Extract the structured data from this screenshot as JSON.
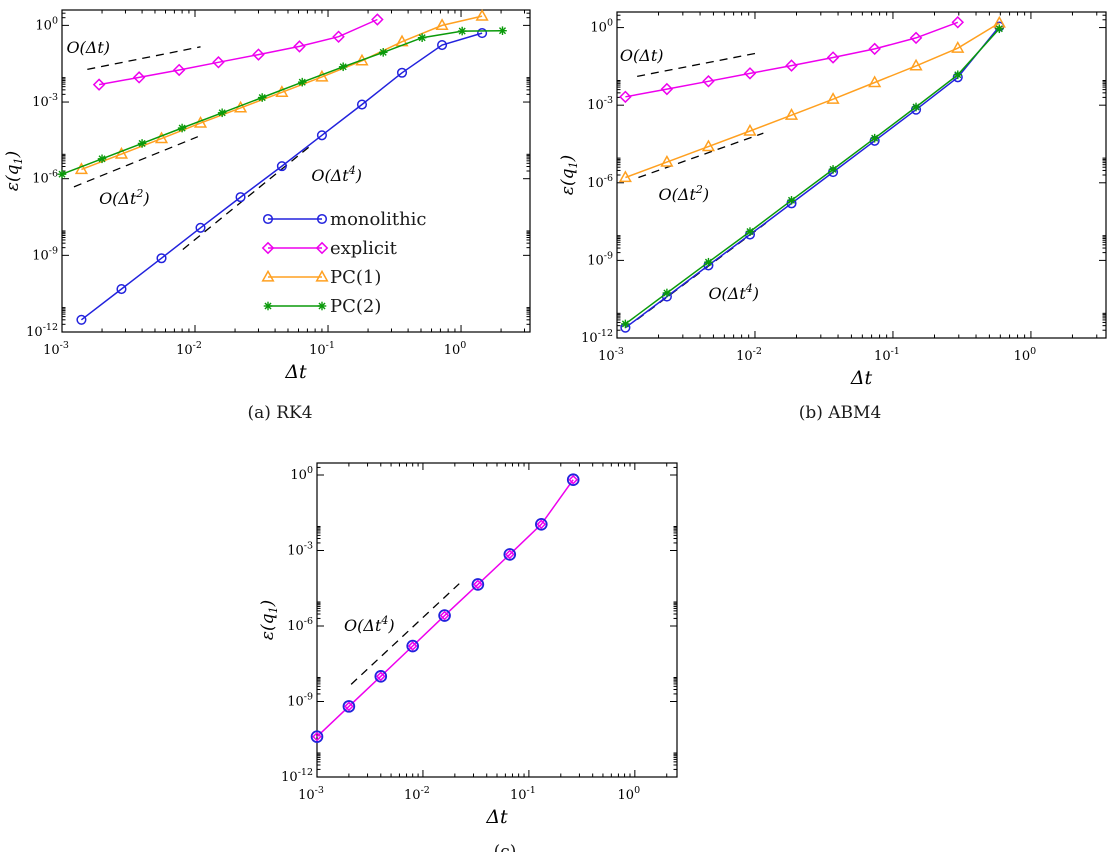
{
  "figure": {
    "captions": {
      "a": "(a) RK4",
      "b": "(b) ABM4",
      "c": "(c)"
    },
    "axis_color": "#000000",
    "background": "#ffffff"
  },
  "chart_data": [
    {
      "id": "a",
      "type": "line",
      "title": "(a) RK4",
      "xlabel": "Δt",
      "ylabel_base": "ε(q",
      "ylabel_sub": "1",
      "ylabel_close": ")",
      "xlim": [
        0.001,
        3.3
      ],
      "ylim": [
        1e-12,
        4
      ],
      "xticks": [
        0.001,
        0.01,
        0.1,
        1
      ],
      "yticks": [
        1,
        0.001,
        1e-06,
        1e-09,
        1e-12
      ],
      "grid": false,
      "legend_position": "inside-right-middle",
      "series": [
        {
          "name": "monolithic",
          "color": "#2222dd",
          "marker": "circle",
          "line": true,
          "x": [
            0.0014,
            0.0028,
            0.0056,
            0.011,
            0.022,
            0.045,
            0.09,
            0.18,
            0.36,
            0.72,
            1.44
          ],
          "y": [
            3e-12,
            4.8e-11,
            7.7e-10,
            1.2e-08,
            1.9e-07,
            3.1e-06,
            5e-05,
            0.0008,
            0.014,
            0.17,
            0.5
          ]
        },
        {
          "name": "explicit",
          "color": "#ee00ee",
          "marker": "diamond",
          "line": true,
          "x": [
            0.0019,
            0.0038,
            0.0076,
            0.015,
            0.03,
            0.061,
            0.12,
            0.235
          ],
          "y": [
            0.0048,
            0.0092,
            0.018,
            0.036,
            0.072,
            0.15,
            0.36,
            1.7
          ]
        },
        {
          "name": "PC(1)",
          "color": "#ffa020",
          "marker": "triangle",
          "line": true,
          "x": [
            0.0014,
            0.0028,
            0.0056,
            0.011,
            0.022,
            0.045,
            0.09,
            0.18,
            0.36,
            0.72,
            1.44
          ],
          "y": [
            2.3e-06,
            9.2e-06,
            3.7e-05,
            0.00015,
            0.00059,
            0.0024,
            0.0096,
            0.041,
            0.23,
            1.0,
            2.3
          ]
        },
        {
          "name": "PC(2)",
          "color": "#0a9a0a",
          "marker": "asterisk",
          "line": true,
          "x": [
            0.001,
            0.002,
            0.004,
            0.008,
            0.016,
            0.032,
            0.064,
            0.13,
            0.26,
            0.51,
            1.02,
            2.05
          ],
          "y": [
            1.5e-06,
            6e-06,
            2.4e-05,
            9.6e-05,
            0.00038,
            0.0015,
            0.006,
            0.024,
            0.088,
            0.33,
            0.6,
            0.62
          ]
        }
      ],
      "ref_lines": [
        {
          "x1": 0.00155,
          "y1": 0.019,
          "x2": 0.011,
          "y2": 0.145,
          "label_base": "O(Δt",
          "label_exp": "",
          "label_close": ")",
          "lx": 0.00108,
          "ly": 0.13
        },
        {
          "x1": 0.00123,
          "y1": 4.8e-07,
          "x2": 0.0105,
          "y2": 4.4e-05,
          "label_base": "O(Δt",
          "label_exp": "2",
          "label_close": ")",
          "lx": 0.0019,
          "ly": 1.6e-07
        },
        {
          "x1": 0.0081,
          "y1": 1.7e-09,
          "x2": 0.0735,
          "y2": 1.9e-05,
          "label_base": "O(Δt",
          "label_exp": "4",
          "label_close": ")",
          "lx": 0.075,
          "ly": 1.3e-06
        }
      ],
      "legend_items": [
        "monolithic",
        "explicit",
        "PC(1)",
        "PC(2)"
      ]
    },
    {
      "id": "b",
      "type": "line",
      "title": "(b) ABM4",
      "xlabel": "Δt",
      "ylabel_base": "ε(q",
      "ylabel_sub": "1",
      "ylabel_close": ")",
      "xlim": [
        0.001,
        3.5
      ],
      "ylim": [
        1e-12,
        4
      ],
      "xticks": [
        0.001,
        0.01,
        0.1,
        1
      ],
      "yticks": [
        1,
        0.001,
        1e-06,
        1e-09,
        1e-12
      ],
      "grid": false,
      "legend_position": "none",
      "series": [
        {
          "name": "monolithic",
          "color": "#2222dd",
          "marker": "circle",
          "line": true,
          "x": [
            0.00115,
            0.0023,
            0.0046,
            0.0092,
            0.0184,
            0.0368,
            0.0737,
            0.147,
            0.295,
            0.59
          ],
          "y": [
            2.5e-12,
            4e-11,
            6.4e-10,
            1e-08,
            1.6e-07,
            2.6e-06,
            4.2e-05,
            0.00067,
            0.012,
            1.1
          ]
        },
        {
          "name": "explicit",
          "color": "#ee00ee",
          "marker": "diamond",
          "line": true,
          "x": [
            0.00115,
            0.0023,
            0.0046,
            0.0092,
            0.0184,
            0.0368,
            0.0737,
            0.147,
            0.295
          ],
          "y": [
            0.0021,
            0.0042,
            0.0084,
            0.017,
            0.034,
            0.07,
            0.15,
            0.4,
            1.6
          ]
        },
        {
          "name": "PC(1)",
          "color": "#ffa020",
          "marker": "triangle",
          "line": true,
          "x": [
            0.00115,
            0.0023,
            0.0046,
            0.0092,
            0.0184,
            0.0368,
            0.0737,
            0.147,
            0.295,
            0.59
          ],
          "y": [
            1.6e-06,
            6.3e-06,
            2.5e-05,
            0.0001,
            0.00041,
            0.0017,
            0.0075,
            0.033,
            0.16,
            1.5
          ]
        },
        {
          "name": "PC(2)",
          "color": "#0a9a0a",
          "marker": "asterisk",
          "line": true,
          "x": [
            0.00115,
            0.0023,
            0.0046,
            0.0092,
            0.0184,
            0.0368,
            0.0737,
            0.147,
            0.295,
            0.59
          ],
          "y": [
            3.5e-12,
            5.5e-11,
            8.5e-10,
            1.3e-08,
            2.1e-07,
            3.3e-06,
            5.3e-05,
            0.00085,
            0.015,
            0.9
          ]
        }
      ],
      "ref_lines": [
        {
          "x1": 0.0014,
          "y1": 0.013,
          "x2": 0.011,
          "y2": 0.11,
          "label_base": "O(Δt",
          "label_exp": "",
          "label_close": ")",
          "lx": 0.00105,
          "ly": 0.08
        },
        {
          "x1": 0.00143,
          "y1": 1.6e-06,
          "x2": 0.0115,
          "y2": 8.3e-05,
          "label_base": "O(Δt",
          "label_exp": "2",
          "label_close": ")",
          "lx": 0.002,
          "ly": 3.3e-07
        },
        {
          "x1": 0.0014,
          "y1": 5.2e-12,
          "x2": 0.012,
          "y2": 2.75e-08,
          "label_base": "O(Δt",
          "label_exp": "4",
          "label_close": ")",
          "lx": 0.0046,
          "ly": 5e-11
        }
      ],
      "legend_items": []
    },
    {
      "id": "c",
      "type": "line",
      "title": "(c)",
      "xlabel": "Δt",
      "ylabel_base": "ε(q",
      "ylabel_sub": "1",
      "ylabel_close": ")",
      "xlim": [
        0.001,
        2.5
      ],
      "ylim": [
        1e-12,
        3
      ],
      "xticks": [
        0.001,
        0.01,
        0.1,
        1
      ],
      "yticks": [
        1,
        0.001,
        1e-06,
        1e-09,
        1e-12
      ],
      "grid": false,
      "legend_position": "none",
      "series": [
        {
          "name": "explicit",
          "color": "#ee00ee",
          "marker": "diamond_small",
          "line": true,
          "x": [
            0.001,
            0.002,
            0.004,
            0.008,
            0.016,
            0.033,
            0.066,
            0.131,
            0.262
          ],
          "y": [
            4e-11,
            6.4e-10,
            1e-08,
            1.6e-07,
            2.6e-06,
            4.5e-05,
            0.0007,
            0.011,
            0.65
          ]
        },
        {
          "name": "monolithic",
          "color": "#2222dd",
          "marker": "circle_big",
          "line": false,
          "x": [
            0.001,
            0.002,
            0.004,
            0.008,
            0.016,
            0.033,
            0.066,
            0.131,
            0.262
          ],
          "y": [
            4e-11,
            6.4e-10,
            1e-08,
            1.6e-07,
            2.6e-06,
            4.5e-05,
            0.0007,
            0.011,
            0.65
          ]
        }
      ],
      "ref_lines": [
        {
          "x1": 0.0021,
          "y1": 4.8e-09,
          "x2": 0.022,
          "y2": 4.8e-05,
          "label_base": "O(Δt",
          "label_exp": "4",
          "label_close": ")",
          "lx": 0.0018,
          "ly": 1e-06
        }
      ],
      "legend_items": []
    }
  ]
}
